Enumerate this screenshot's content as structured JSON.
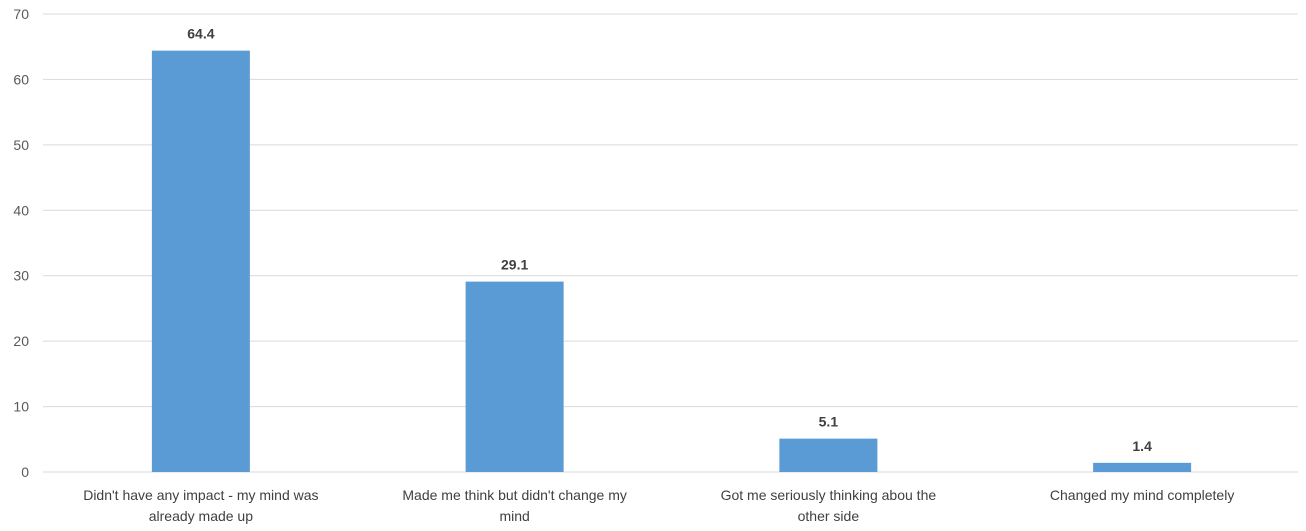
{
  "chart_data": {
    "type": "bar",
    "categories": [
      [
        "Didn't have any impact - my mind was",
        "already made up"
      ],
      [
        "Made me think but didn't change my",
        "mind"
      ],
      [
        "Got me seriously thinking abou the",
        "other side"
      ],
      [
        "Changed my mind completely"
      ]
    ],
    "values": [
      64.4,
      29.1,
      5.1,
      1.4
    ],
    "value_labels": [
      "64.4",
      "29.1",
      "5.1",
      "1.4"
    ],
    "y_ticks": [
      "0",
      "10",
      "20",
      "30",
      "40",
      "50",
      "60",
      "70"
    ],
    "ylim": [
      0,
      70
    ],
    "grid": true,
    "legend": "none",
    "colors": {
      "bar": "#5b9bd5",
      "grid": "#d9d9d9"
    }
  }
}
